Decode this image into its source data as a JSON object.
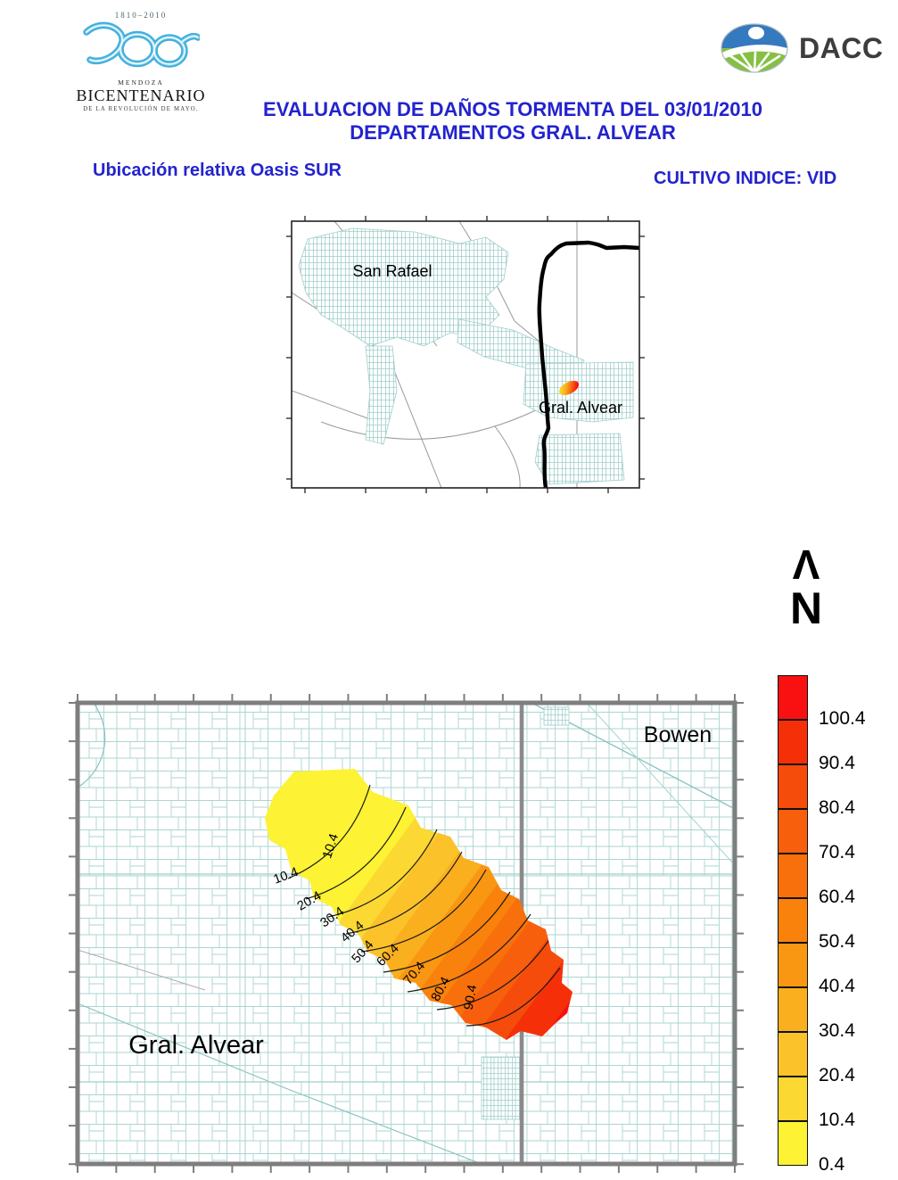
{
  "header": {
    "bicentenario": {
      "years": "1810–2010",
      "place": "MENDOZA",
      "name": "BICENTENARIO",
      "tagline": "DE LA REVOLUCIÓN DE MAYO."
    },
    "dacc_label": "DACC",
    "title_line1": "EVALUACION DE DAÑOS TORMENTA DEL 03/01/2010",
    "title_line2": "DEPARTAMENTOS GRAL. ALVEAR",
    "caption_left": "Ubicación relativa Oasis SUR",
    "caption_right": "CULTIVO INDICE: VID",
    "title_color": "#2323CE"
  },
  "locator_map": {
    "san_rafael": "San Rafael",
    "gral_alvear": "Gral. Alvear"
  },
  "north": {
    "chevron": "Λ",
    "letter": "N"
  },
  "main_map": {
    "bowen": "Bowen",
    "gral_alvear": "Gral. Alvear",
    "contour_labels": [
      "10.4",
      "10.4",
      "20.4",
      "30.4",
      "40.4",
      "50.4",
      "60.4",
      "70.4",
      "80.4",
      "90.4"
    ]
  },
  "legend": {
    "labels": [
      "100.4",
      "90.4",
      "80.4",
      "70.4",
      "60.4",
      "50.4",
      "40.4",
      "30.4",
      "20.4",
      "10.4",
      "0.4"
    ],
    "colors_top_to_bottom": [
      "#F91010",
      "#F53009",
      "#F54C0B",
      "#F75F0D",
      "#F8700B",
      "#F8820C",
      "#F99712",
      "#FAAF1E",
      "#FBC22A",
      "#FCD832",
      "#FDF233"
    ],
    "accent_teal": "#9FCECB",
    "frame_gray": "#7E7E7E"
  }
}
